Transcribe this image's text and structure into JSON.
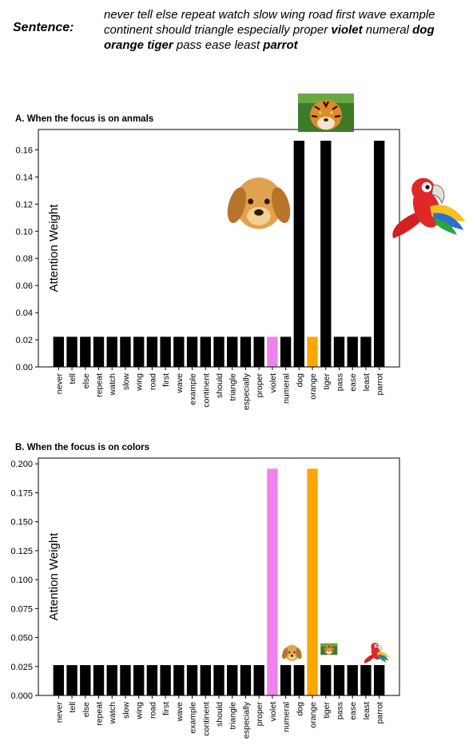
{
  "sentence": {
    "label": "Sentence:",
    "words": [
      {
        "text": "never",
        "bold": false
      },
      {
        "text": "tell",
        "bold": false
      },
      {
        "text": "else",
        "bold": false
      },
      {
        "text": "repeat",
        "bold": false
      },
      {
        "text": "watch",
        "bold": false
      },
      {
        "text": "slow",
        "bold": false
      },
      {
        "text": "wing",
        "bold": false
      },
      {
        "text": "road",
        "bold": false
      },
      {
        "text": "first",
        "bold": false
      },
      {
        "text": "wave",
        "bold": false
      },
      {
        "text": "example",
        "bold": false
      },
      {
        "text": "continent",
        "bold": false
      },
      {
        "text": "should",
        "bold": false
      },
      {
        "text": "triangle",
        "bold": false
      },
      {
        "text": "especially",
        "bold": false
      },
      {
        "text": "proper",
        "bold": false
      },
      {
        "text": "violet",
        "bold": true
      },
      {
        "text": "numeral",
        "bold": false
      },
      {
        "text": "dog",
        "bold": true
      },
      {
        "text": "orange",
        "bold": true
      },
      {
        "text": "tiger",
        "bold": true
      },
      {
        "text": "pass",
        "bold": false
      },
      {
        "text": "ease",
        "bold": false
      },
      {
        "text": "least",
        "bold": false
      },
      {
        "text": "parrot",
        "bold": true
      }
    ]
  },
  "colors": {
    "bar": "#000000",
    "violet": "#ee82ee",
    "orange": "#ffa500"
  },
  "chart_data": [
    {
      "type": "bar",
      "title": "A. When the focus is on anmals",
      "ylabel": "Attention Weight",
      "ylim": [
        0,
        0.175
      ],
      "yticks": [
        "0.00",
        "0.02",
        "0.04",
        "0.06",
        "0.08",
        "0.10",
        "0.12",
        "0.14",
        "0.16"
      ],
      "categories": [
        "never",
        "tell",
        "else",
        "repeat",
        "watch",
        "slow",
        "wing",
        "road",
        "first",
        "wave",
        "example",
        "continent",
        "should",
        "triangle",
        "especially",
        "proper",
        "violet",
        "numeral",
        "dog",
        "orange",
        "tiger",
        "pass",
        "ease",
        "least",
        "parrot"
      ],
      "values": [
        0.0222,
        0.0222,
        0.0222,
        0.0222,
        0.0222,
        0.0222,
        0.0222,
        0.0222,
        0.0222,
        0.0222,
        0.0222,
        0.0222,
        0.0222,
        0.0222,
        0.0222,
        0.0222,
        0.0222,
        0.0222,
        0.1667,
        0.0222,
        0.1667,
        0.0222,
        0.0222,
        0.0222,
        0.1667
      ],
      "bar_colors": [
        "#000000",
        "#000000",
        "#000000",
        "#000000",
        "#000000",
        "#000000",
        "#000000",
        "#000000",
        "#000000",
        "#000000",
        "#000000",
        "#000000",
        "#000000",
        "#000000",
        "#000000",
        "#000000",
        "#ee82ee",
        "#000000",
        "#000000",
        "#ffa500",
        "#000000",
        "#000000",
        "#000000",
        "#000000",
        "#000000"
      ],
      "pictures": [
        {
          "icon": "puppy-picture",
          "category": "dog"
        },
        {
          "icon": "tiger-picture",
          "category": "tiger"
        },
        {
          "icon": "parrot-picture",
          "category": "parrot"
        }
      ]
    },
    {
      "type": "bar",
      "title": "B. When the focus is on colors",
      "ylabel": "Attention Weight",
      "ylim": [
        0,
        0.205
      ],
      "yticks": [
        "0.000",
        "0.025",
        "0.050",
        "0.075",
        "0.100",
        "0.125",
        "0.150",
        "0.175",
        "0.200"
      ],
      "categories": [
        "never",
        "tell",
        "else",
        "repeat",
        "watch",
        "slow",
        "wing",
        "road",
        "first",
        "wave",
        "example",
        "continent",
        "should",
        "triangle",
        "especially",
        "proper",
        "violet",
        "numeral",
        "dog",
        "orange",
        "tiger",
        "pass",
        "ease",
        "least",
        "parrot"
      ],
      "values": [
        0.0262,
        0.0262,
        0.0262,
        0.0262,
        0.0262,
        0.0262,
        0.0262,
        0.0262,
        0.0262,
        0.0262,
        0.0262,
        0.0262,
        0.0262,
        0.0262,
        0.0262,
        0.0262,
        0.1958,
        0.0262,
        0.0262,
        0.1958,
        0.0262,
        0.0262,
        0.0262,
        0.0262,
        0.0262
      ],
      "bar_colors": [
        "#000000",
        "#000000",
        "#000000",
        "#000000",
        "#000000",
        "#000000",
        "#000000",
        "#000000",
        "#000000",
        "#000000",
        "#000000",
        "#000000",
        "#000000",
        "#000000",
        "#000000",
        "#000000",
        "#ee82ee",
        "#000000",
        "#000000",
        "#ffa500",
        "#000000",
        "#000000",
        "#000000",
        "#000000",
        "#000000"
      ],
      "pictures": [
        {
          "icon": "puppy-picture",
          "category": "dog"
        },
        {
          "icon": "tiger-picture",
          "category": "tiger"
        },
        {
          "icon": "parrot-picture",
          "category": "parrot"
        }
      ]
    }
  ]
}
